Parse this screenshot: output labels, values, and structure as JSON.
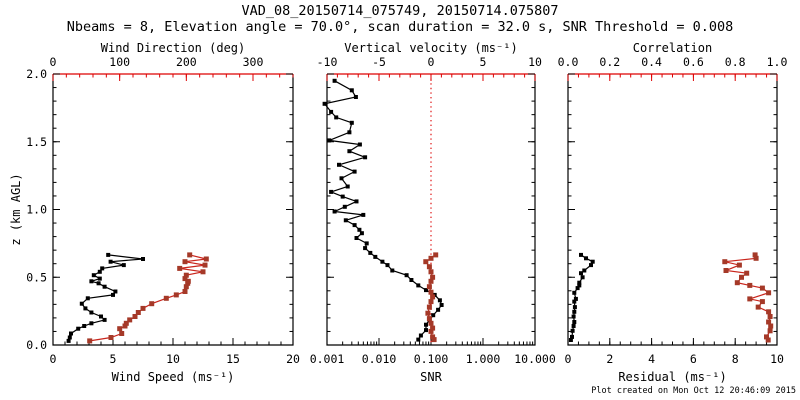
{
  "title": "VAD_08_20150714_075749, 20150714.075807",
  "subtitle": "Nbeams = 8, Elevation angle = 70.0°, scan duration = 32.0 s, SNR Threshold = 0.008",
  "footer": "Plot created on Mon Oct 12 20:46:09 2015",
  "colors": {
    "background": "#ffffff",
    "frame": "#000000",
    "red_axis": "#dd0000",
    "red_line": "#c9251c",
    "red_marker": "#a53928",
    "black_series": "#000000"
  },
  "chart_data": [
    {
      "type": "line",
      "name": "wind-panel",
      "top_axis": {
        "label": "Wind Direction (deg)",
        "range": [
          0,
          360
        ],
        "ticks": [
          0,
          100,
          200,
          300
        ],
        "tick_labels": [
          "0",
          "100",
          "200",
          "300"
        ],
        "minor_step": 20,
        "color": "red"
      },
      "bottom_axis": {
        "label": "Wind Speed (ms⁻¹)",
        "range": [
          0,
          20
        ],
        "ticks": [
          0,
          5,
          10,
          15,
          20
        ],
        "tick_labels": [
          "0",
          "5",
          "10",
          "15",
          "20"
        ],
        "minor_step": 1,
        "color": "black"
      },
      "y_axis": {
        "label": "z (km AGL)",
        "range": [
          0,
          2.0
        ],
        "ticks": [
          0,
          0.5,
          1.0,
          1.5,
          2.0
        ],
        "tick_labels": [
          "0.0",
          "0.5",
          "1.0",
          "1.5",
          "2.0"
        ],
        "minor_step": 0.1,
        "show_labels": true
      },
      "series": [
        {
          "name": "wind-speed",
          "axis": "bottom",
          "color": "black",
          "z": [
            0.03,
            0.055,
            0.085,
            0.12,
            0.14,
            0.16,
            0.185,
            0.21,
            0.24,
            0.27,
            0.305,
            0.345,
            0.37,
            0.395,
            0.43,
            0.455,
            0.47,
            0.49,
            0.515,
            0.54,
            0.565,
            0.59,
            0.615,
            0.635,
            0.665
          ],
          "values": [
            1.3,
            1.4,
            1.5,
            2.1,
            2.6,
            3.2,
            4.3,
            4.0,
            3.2,
            2.7,
            2.4,
            2.9,
            5.0,
            5.2,
            4.3,
            3.8,
            3.2,
            3.9,
            3.4,
            3.9,
            4.1,
            5.9,
            4.8,
            7.5,
            4.6
          ]
        },
        {
          "name": "wind-direction",
          "axis": "top",
          "color": "red",
          "z": [
            0.03,
            0.055,
            0.085,
            0.12,
            0.14,
            0.16,
            0.185,
            0.21,
            0.24,
            0.27,
            0.305,
            0.345,
            0.37,
            0.395,
            0.43,
            0.455,
            0.47,
            0.49,
            0.515,
            0.54,
            0.565,
            0.59,
            0.615,
            0.635,
            0.665
          ],
          "values": [
            55,
            87,
            103,
            100,
            108,
            110,
            115,
            123,
            128,
            135,
            148,
            170,
            185,
            198,
            200,
            202,
            203,
            198,
            200,
            225,
            190,
            228,
            198,
            230,
            205
          ]
        }
      ]
    },
    {
      "type": "line",
      "name": "snr-panel",
      "top_axis": {
        "label": "Vertical velocity (ms⁻¹)",
        "range": [
          -10,
          10
        ],
        "ticks": [
          -10,
          -5,
          0,
          5,
          10
        ],
        "tick_labels": [
          "-10",
          "-5",
          "0",
          "5",
          "10"
        ],
        "minor_step": 1,
        "color": "red"
      },
      "bottom_axis": {
        "label": "SNR",
        "scale": "log",
        "range": [
          0.001,
          10
        ],
        "ticks": [
          0.001,
          0.01,
          0.1,
          1,
          10
        ],
        "tick_labels": [
          "0.001",
          "0.010",
          "0.100",
          "1.000",
          "10.000"
        ],
        "color": "black"
      },
      "y_axis": {
        "label": "",
        "range": [
          0,
          2.0
        ],
        "ticks": [
          0,
          0.5,
          1.0,
          1.5,
          2.0
        ],
        "tick_labels": [],
        "minor_step": 0.1,
        "show_labels": false
      },
      "zero_line": {
        "axis": "top",
        "value": 0,
        "style": "dotted",
        "color": "red"
      },
      "series": [
        {
          "name": "snr",
          "axis": "bottom",
          "color": "black",
          "z": [
            0.04,
            0.07,
            0.11,
            0.15,
            0.185,
            0.22,
            0.26,
            0.295,
            0.33,
            0.37,
            0.405,
            0.44,
            0.48,
            0.515,
            0.55,
            0.59,
            0.615,
            0.65,
            0.68,
            0.715,
            0.75,
            0.79,
            0.825,
            0.85,
            0.885,
            0.92,
            0.96,
            0.985,
            1.02,
            1.06,
            1.095,
            1.13,
            1.17,
            1.23,
            1.28,
            1.33,
            1.385,
            1.43,
            1.48,
            1.51,
            1.57,
            1.64,
            1.68,
            1.72,
            1.78,
            1.83,
            1.88,
            1.95
          ],
          "values": [
            0.057,
            0.064,
            0.08,
            0.08,
            0.094,
            0.11,
            0.137,
            0.16,
            0.148,
            0.118,
            0.08,
            0.057,
            0.042,
            0.034,
            0.018,
            0.0146,
            0.0116,
            0.0085,
            0.0068,
            0.0054,
            0.0058,
            0.0037,
            0.0047,
            0.0042,
            0.0034,
            0.0023,
            0.005,
            0.0014,
            0.0022,
            0.0037,
            0.002,
            0.0012,
            0.0025,
            0.0019,
            0.0034,
            0.0017,
            0.0054,
            0.0027,
            0.0043,
            0.0011,
            0.0027,
            0.003,
            0.0015,
            0.0012,
            0.0009,
            0.0036,
            0.003,
            0.0014
          ]
        },
        {
          "name": "vertical-velocity",
          "axis": "top",
          "color": "red",
          "z": [
            0.04,
            0.06,
            0.1,
            0.125,
            0.16,
            0.195,
            0.235,
            0.28,
            0.32,
            0.355,
            0.39,
            0.43,
            0.47,
            0.5,
            0.54,
            0.578,
            0.615,
            0.64,
            0.665
          ],
          "values": [
            0.3,
            0.15,
            0.0,
            0.15,
            0.0,
            -0.15,
            -0.3,
            -0.15,
            0.0,
            0.15,
            0.0,
            -0.15,
            0.0,
            0.15,
            0.0,
            -0.15,
            -0.5,
            0.0,
            0.45
          ]
        }
      ]
    },
    {
      "type": "line",
      "name": "residual-panel",
      "top_axis": {
        "label": "Correlation",
        "range": [
          0,
          1
        ],
        "ticks": [
          0,
          0.2,
          0.4,
          0.6,
          0.8,
          1.0
        ],
        "tick_labels": [
          "0.0",
          "0.2",
          "0.4",
          "0.6",
          "0.8",
          "1.0"
        ],
        "minor_step": 0.05,
        "color": "red"
      },
      "bottom_axis": {
        "label": "Residual (ms⁻¹)",
        "range": [
          0,
          10
        ],
        "ticks": [
          0,
          2,
          4,
          6,
          8,
          10
        ],
        "tick_labels": [
          "0",
          "2",
          "4",
          "6",
          "8",
          "10"
        ],
        "minor_step": 0.5,
        "color": "black"
      },
      "y_axis": {
        "label": "",
        "range": [
          0,
          2.0
        ],
        "ticks": [
          0,
          0.5,
          1.0,
          1.5,
          2.0
        ],
        "tick_labels": [],
        "minor_step": 0.1,
        "show_labels": false
      },
      "series": [
        {
          "name": "residual",
          "axis": "bottom",
          "color": "black",
          "z": [
            0.037,
            0.06,
            0.105,
            0.14,
            0.17,
            0.21,
            0.245,
            0.28,
            0.32,
            0.34,
            0.385,
            0.42,
            0.44,
            0.46,
            0.5,
            0.53,
            0.55,
            0.59,
            0.615,
            0.64,
            0.665
          ],
          "values": [
            0.14,
            0.19,
            0.22,
            0.27,
            0.3,
            0.27,
            0.3,
            0.33,
            0.3,
            0.38,
            0.3,
            0.46,
            0.54,
            0.54,
            0.7,
            0.62,
            0.78,
            1.1,
            1.18,
            0.86,
            0.62
          ]
        },
        {
          "name": "correlation",
          "axis": "top",
          "color": "red",
          "z": [
            0.037,
            0.06,
            0.105,
            0.14,
            0.17,
            0.21,
            0.245,
            0.28,
            0.32,
            0.34,
            0.385,
            0.42,
            0.44,
            0.46,
            0.5,
            0.53,
            0.55,
            0.59,
            0.615,
            0.64,
            0.665
          ],
          "values": [
            0.958,
            0.95,
            0.967,
            0.97,
            0.96,
            0.967,
            0.96,
            0.91,
            0.93,
            0.87,
            0.96,
            0.93,
            0.87,
            0.81,
            0.83,
            0.855,
            0.756,
            0.82,
            0.75,
            0.9,
            0.895
          ]
        }
      ]
    }
  ]
}
